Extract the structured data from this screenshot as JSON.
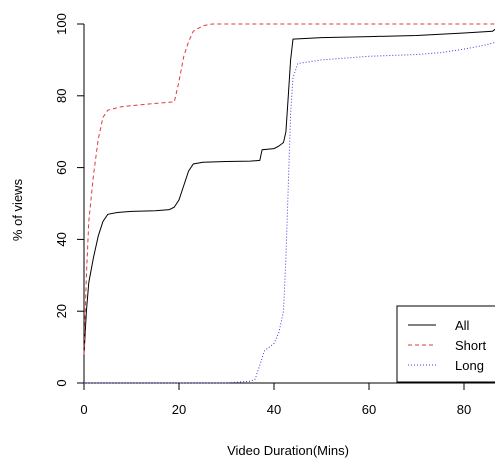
{
  "chart_data": {
    "type": "line",
    "xlabel": "Video Duration(Mins)",
    "ylabel": "% of views",
    "xlim": [
      -1,
      89
    ],
    "ylim": [
      0,
      100
    ],
    "x_ticks": [
      0,
      20,
      40,
      60,
      80
    ],
    "y_ticks": [
      0,
      20,
      40,
      60,
      80,
      100
    ],
    "grid": false,
    "legend_position": "bottom-right",
    "series": [
      {
        "name": "All",
        "color": "#000000",
        "dash": "solid",
        "points": [
          [
            0,
            8
          ],
          [
            0.5,
            20
          ],
          [
            1,
            28
          ],
          [
            2,
            35
          ],
          [
            3,
            41
          ],
          [
            4,
            45
          ],
          [
            5,
            47
          ],
          [
            7,
            47.5
          ],
          [
            10,
            47.8
          ],
          [
            15,
            48
          ],
          [
            18,
            48.3
          ],
          [
            19,
            49
          ],
          [
            20,
            51
          ],
          [
            21,
            55
          ],
          [
            22,
            59
          ],
          [
            23,
            61
          ],
          [
            25,
            61.5
          ],
          [
            30,
            61.7
          ],
          [
            35,
            61.8
          ],
          [
            37,
            62
          ],
          [
            37.5,
            65
          ],
          [
            40,
            65.3
          ],
          [
            41,
            66
          ],
          [
            42,
            67
          ],
          [
            42.5,
            70
          ],
          [
            43,
            80
          ],
          [
            43.5,
            90
          ],
          [
            44,
            95.8
          ],
          [
            50,
            96.2
          ],
          [
            60,
            96.5
          ],
          [
            70,
            96.8
          ],
          [
            80,
            97.5
          ],
          [
            86,
            98
          ],
          [
            87,
            99
          ],
          [
            89,
            99.5
          ]
        ]
      },
      {
        "name": "Short",
        "color": "#df3a3a",
        "dash": "dashed",
        "points": [
          [
            0,
            8
          ],
          [
            0.5,
            30
          ],
          [
            1,
            45
          ],
          [
            2,
            58
          ],
          [
            3,
            68
          ],
          [
            4,
            74
          ],
          [
            5,
            76
          ],
          [
            8,
            77
          ],
          [
            12,
            77.5
          ],
          [
            16,
            78
          ],
          [
            19,
            78.3
          ],
          [
            20,
            84
          ],
          [
            21,
            91
          ],
          [
            22,
            95
          ],
          [
            23,
            98
          ],
          [
            25,
            99.5
          ],
          [
            27,
            100
          ],
          [
            89,
            100
          ]
        ]
      },
      {
        "name": "Long",
        "color": "#3a3ad8",
        "dash": "dotted",
        "points": [
          [
            0,
            0
          ],
          [
            30,
            0
          ],
          [
            35,
            0.5
          ],
          [
            36,
            1
          ],
          [
            37,
            5
          ],
          [
            38,
            9
          ],
          [
            40,
            11
          ],
          [
            41,
            14
          ],
          [
            42,
            20
          ],
          [
            42.5,
            35
          ],
          [
            43,
            55
          ],
          [
            43.5,
            75
          ],
          [
            44,
            85
          ],
          [
            45,
            89
          ],
          [
            50,
            90
          ],
          [
            60,
            91
          ],
          [
            70,
            91.5
          ],
          [
            75,
            92
          ],
          [
            80,
            93
          ],
          [
            84,
            94
          ],
          [
            87,
            95
          ],
          [
            89,
            97.5
          ]
        ]
      }
    ]
  }
}
